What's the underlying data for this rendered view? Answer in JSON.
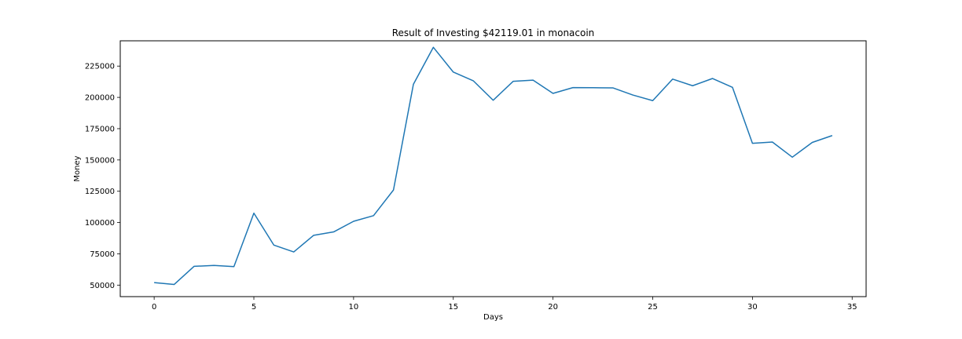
{
  "chart_data": {
    "type": "line",
    "title": "Result of Investing $42119.01 in monacoin",
    "xlabel": "Days",
    "ylabel": "Money",
    "xlim": [
      -1.7,
      35.7
    ],
    "ylim": [
      40800,
      245200
    ],
    "xticks": [
      0,
      5,
      10,
      15,
      20,
      25,
      30,
      35
    ],
    "yticks": [
      50000,
      75000,
      100000,
      125000,
      150000,
      175000,
      200000,
      225000
    ],
    "grid": false,
    "line_color": "#1f77b4",
    "series": [
      {
        "x": [
          0,
          1,
          2,
          3,
          4,
          5,
          6,
          7,
          8,
          9,
          10,
          11,
          12,
          13,
          14,
          15,
          16,
          17,
          18,
          19,
          20,
          21,
          22,
          23,
          24,
          25,
          26,
          27,
          28,
          29,
          30,
          31,
          32,
          33,
          34
        ],
        "values": [
          52000,
          50500,
          65000,
          65700,
          64800,
          107500,
          82000,
          76500,
          89800,
          92500,
          101000,
          105500,
          126000,
          210500,
          240000,
          220200,
          213300,
          197700,
          212800,
          213800,
          203200,
          207800,
          207700,
          207600,
          201900,
          197400,
          214600,
          209300,
          215100,
          208000,
          163300,
          164300,
          152200,
          164000,
          169500
        ]
      }
    ]
  }
}
